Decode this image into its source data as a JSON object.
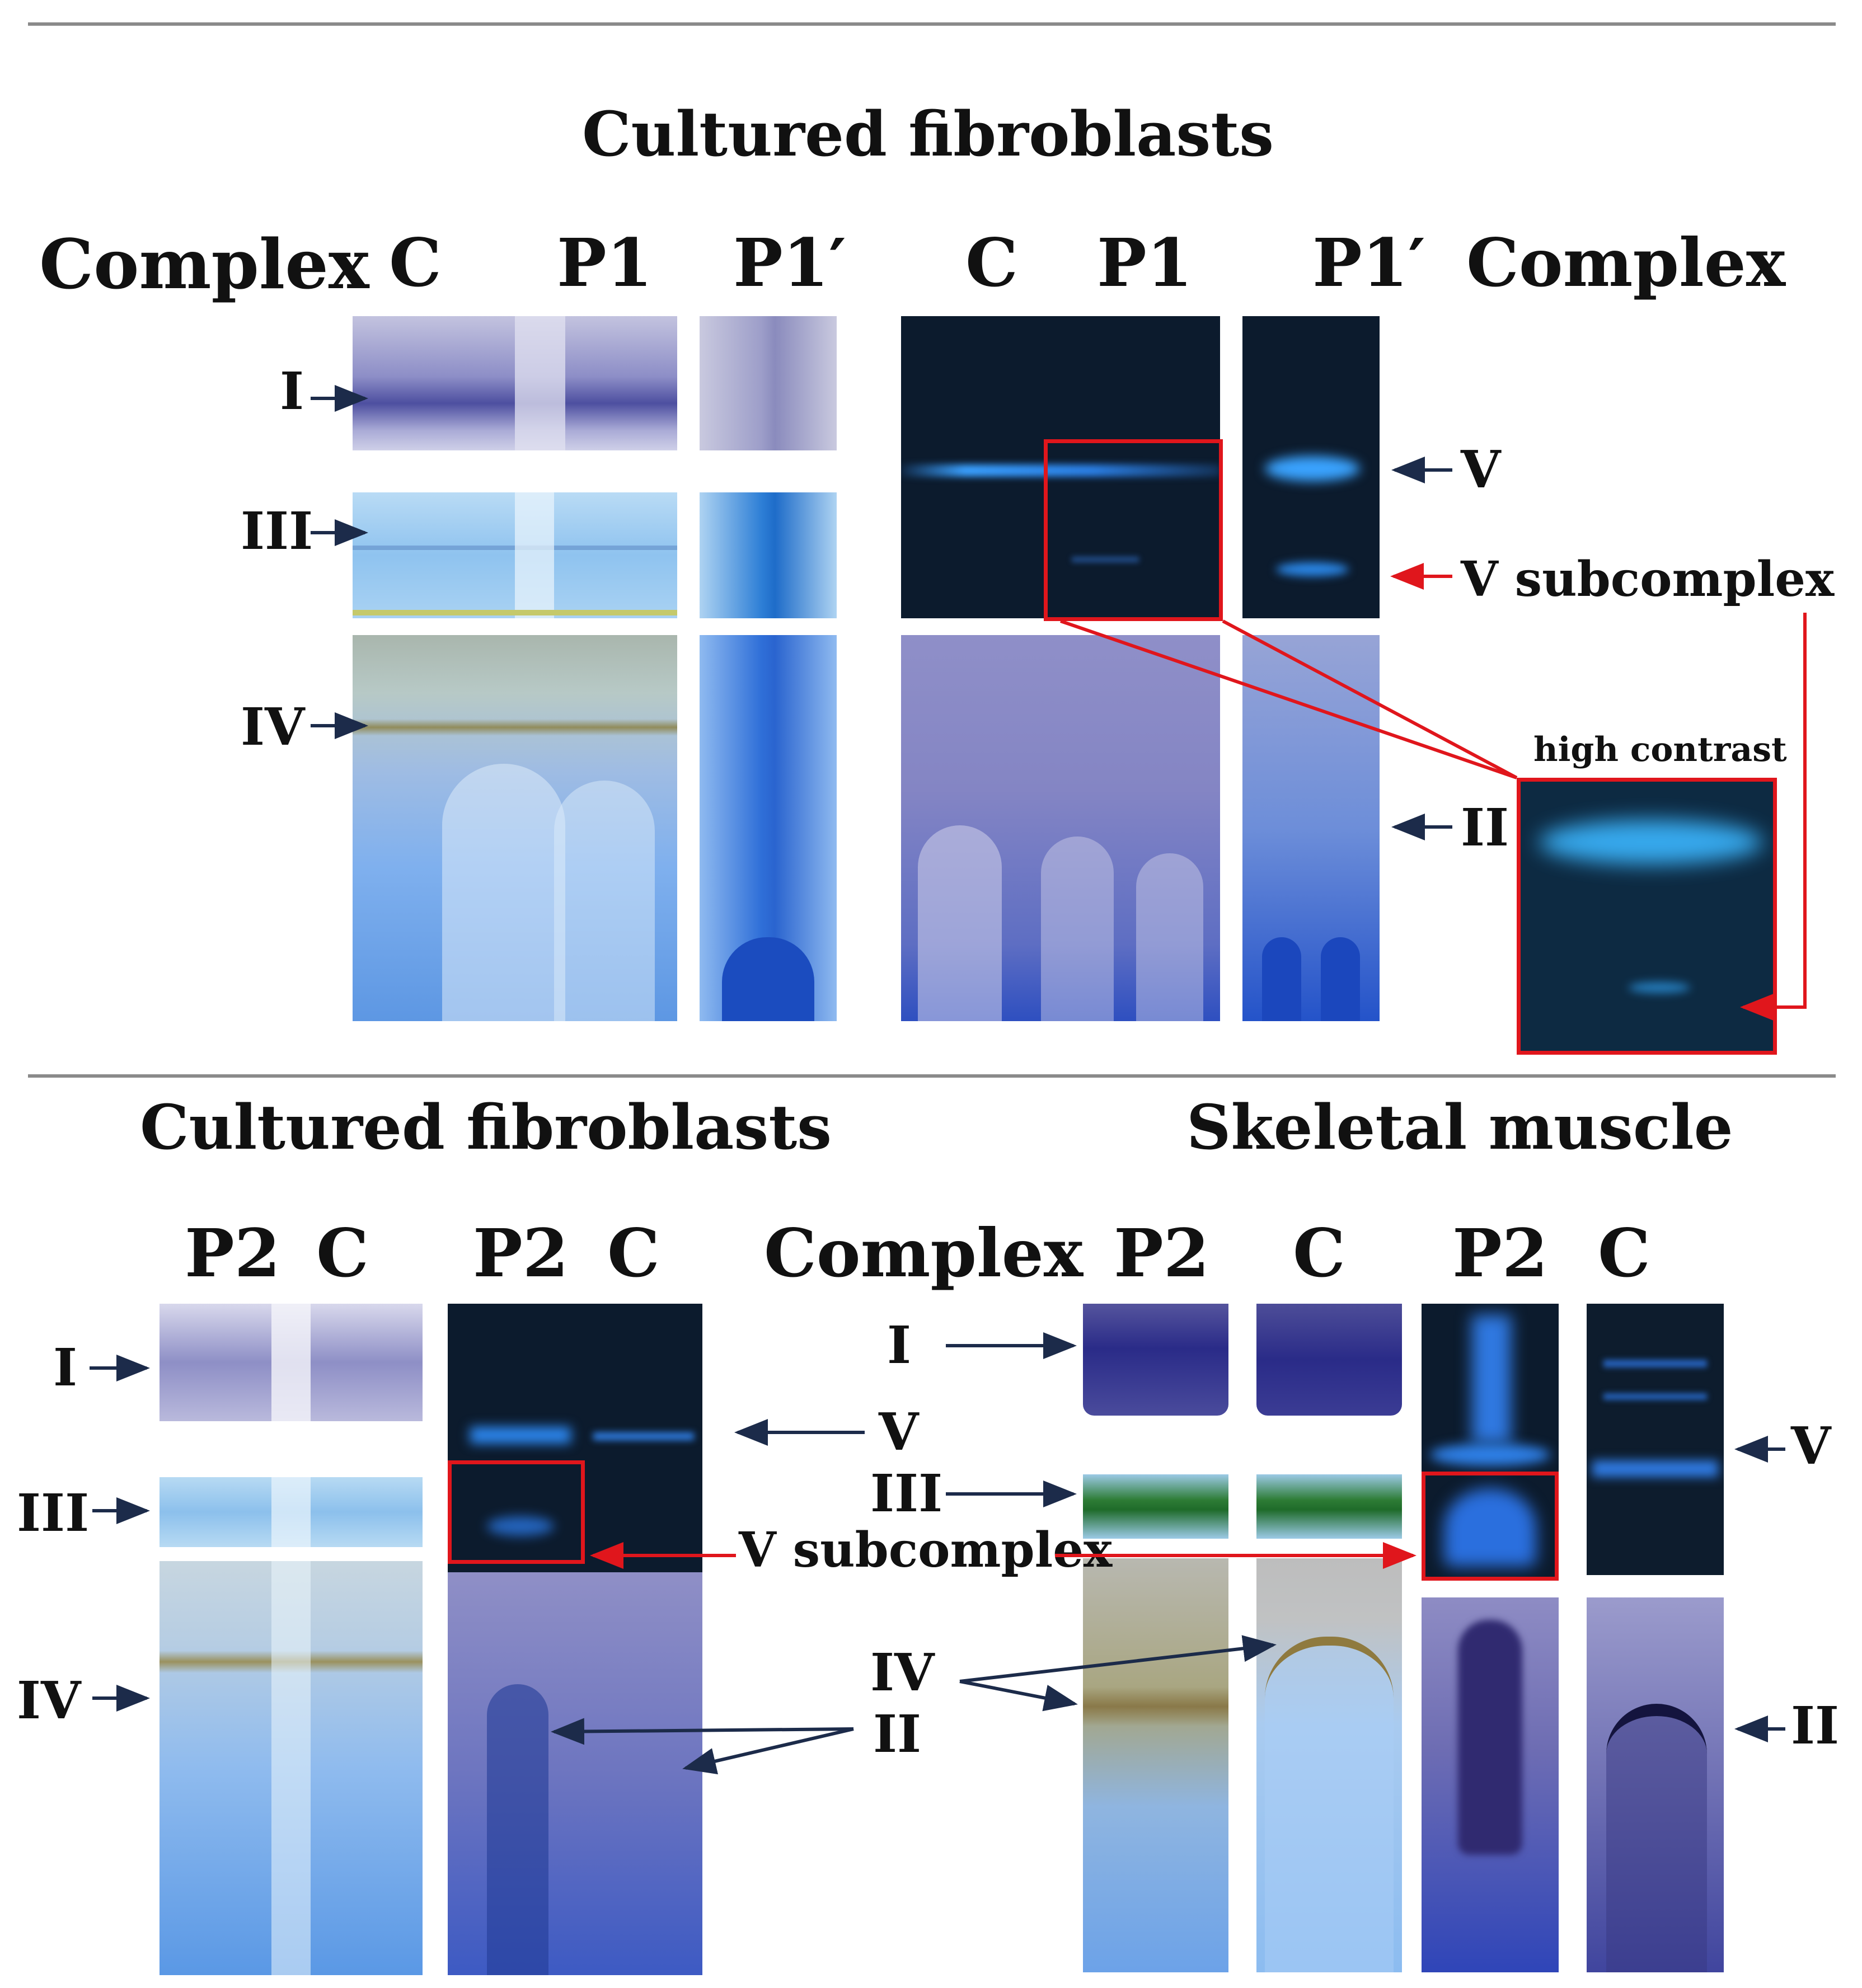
{
  "top_panel": {
    "title": "Cultured fibroblasts",
    "complex_label_left": "Complex",
    "complex_label_right": "Complex",
    "lanes_left": [
      "C",
      "P1",
      "P1′"
    ],
    "lanes_right": [
      "C",
      "P1",
      "P1′"
    ],
    "left_complex_labels": [
      "I",
      "III",
      "IV"
    ],
    "right_complex_labels": [
      "V",
      "V subcomplex",
      "II"
    ],
    "inset_label": "high contrast"
  },
  "bottom_left_panel": {
    "title": "Cultured fibroblasts",
    "lanes_a": [
      "P2",
      "C"
    ],
    "lanes_b": [
      "P2",
      "C"
    ],
    "complex_labels": [
      "I",
      "III",
      "IV"
    ]
  },
  "bottom_right_panel": {
    "title": "Skeletal muscle",
    "complex_header": "Complex",
    "lanes": [
      "P2",
      "C",
      "P2",
      "C"
    ],
    "complex_labels": [
      "I",
      "III",
      "IV",
      "II"
    ],
    "right_labels": [
      "V",
      "II"
    ]
  },
  "shared_labels": {
    "v_label": "V",
    "v_subcomplex": "V subcomplex",
    "ii_label": "II"
  },
  "colors": {
    "arrow_dark": "#1c2b4a",
    "arrow_red": "#e0161c",
    "gel_blue": "#5a86d8",
    "gel_dark": "#0b1a2c",
    "gel_purple": "#6b6aa8"
  }
}
